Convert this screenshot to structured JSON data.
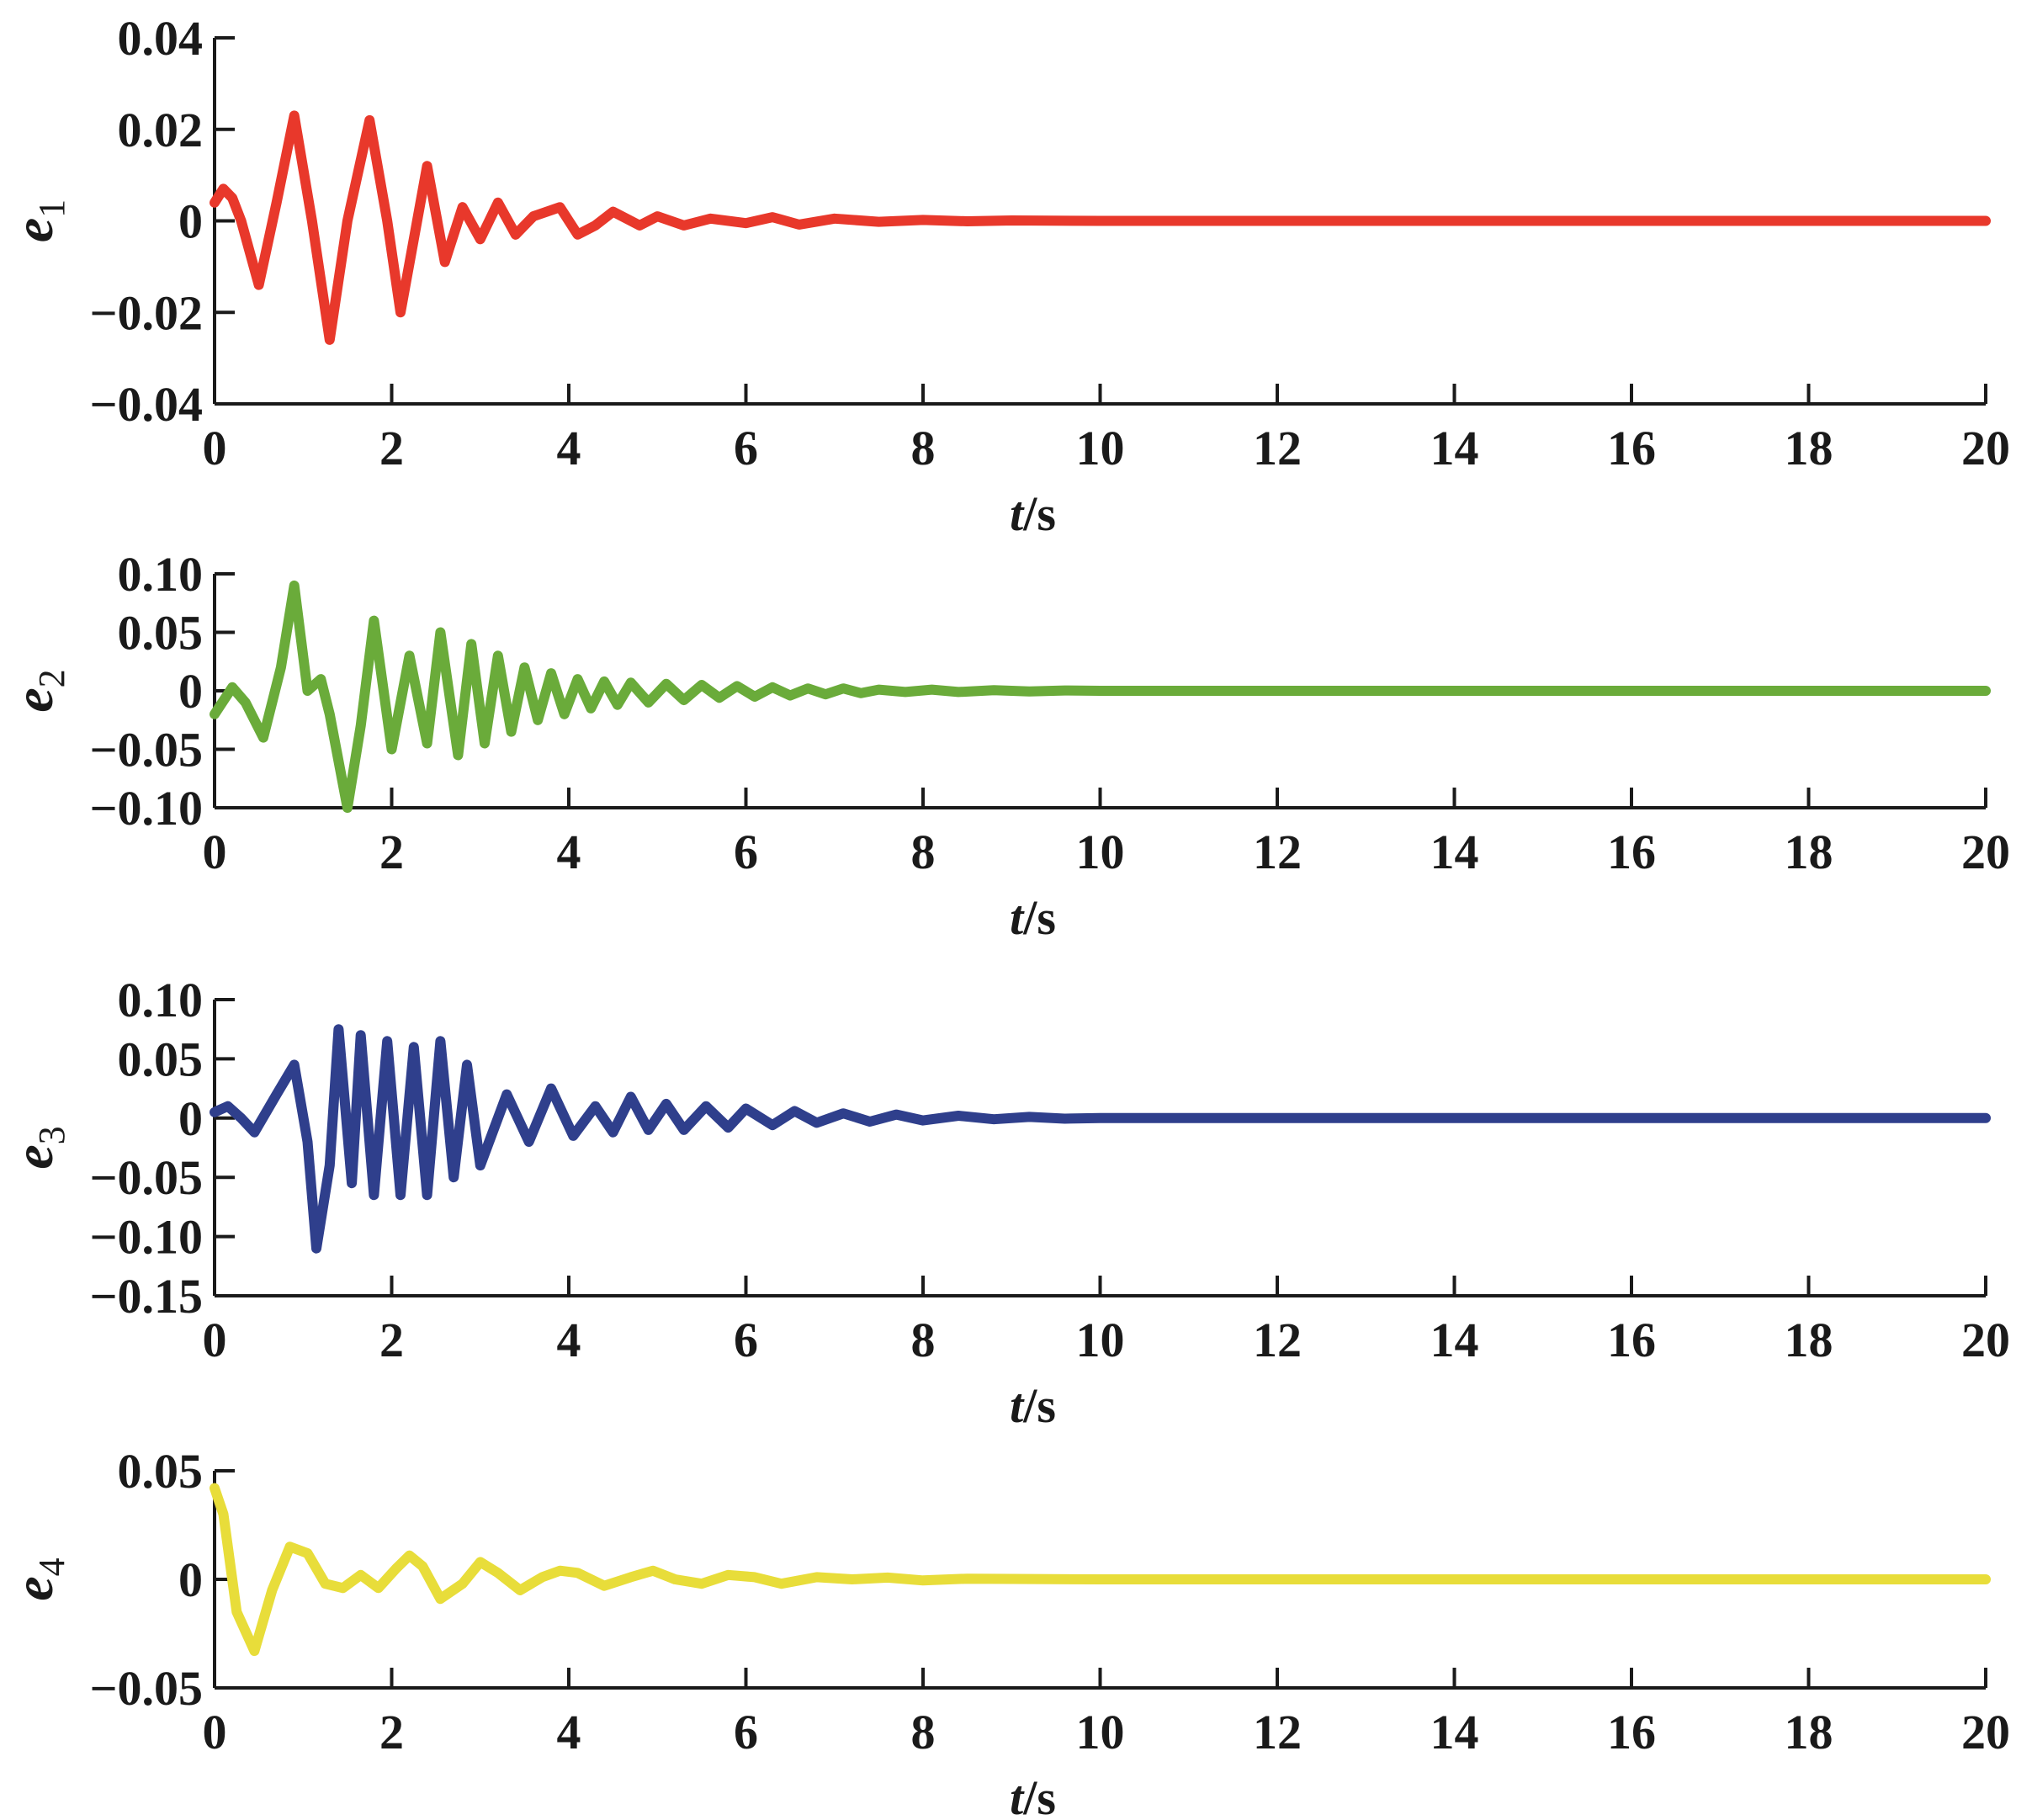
{
  "chart_data": [
    {
      "type": "line",
      "ylabel": "e",
      "ylabel_sub": "1",
      "xlabel": "t",
      "xlabel_unit": "/s",
      "xlim": [
        0,
        20
      ],
      "ylim": [
        -0.04,
        0.04
      ],
      "xticks": [
        0,
        2,
        4,
        6,
        8,
        10,
        12,
        14,
        16,
        18,
        20
      ],
      "xtick_labels": [
        "0",
        "2",
        "4",
        "6",
        "8",
        "10",
        "12",
        "14",
        "16",
        "18",
        "20"
      ],
      "yticks": [
        -0.04,
        -0.02,
        0,
        0.02,
        0.04
      ],
      "ytick_labels": [
        "−0.04",
        "−0.02",
        "0",
        "0.02",
        "0.04"
      ],
      "grid": false,
      "color": "#e8382b",
      "series": [
        {
          "x": [
            0,
            0.1,
            0.2,
            0.3,
            0.5,
            0.7,
            0.9,
            1.1,
            1.3,
            1.5,
            1.75,
            1.95,
            2.1,
            2.4,
            2.6,
            2.8,
            3.0,
            3.2,
            3.4,
            3.6,
            3.9,
            4.1,
            4.3,
            4.5,
            4.8,
            5.0,
            5.3,
            5.6,
            6.0,
            6.3,
            6.6,
            7.0,
            7.5,
            8.0,
            8.5,
            9.0,
            10,
            20
          ],
          "y": [
            0.004,
            0.007,
            0.005,
            0.0,
            -0.014,
            0.004,
            0.023,
            0.0,
            -0.026,
            0.0,
            0.022,
            0.0,
            -0.02,
            0.012,
            -0.009,
            0.003,
            -0.004,
            0.004,
            -0.003,
            0.001,
            0.003,
            -0.003,
            -0.001,
            0.002,
            -0.001,
            0.001,
            -0.001,
            0.0005,
            -0.0005,
            0.0008,
            -0.0008,
            0.0005,
            -0.0002,
            0.0002,
            -0.0001,
            0.0001,
            0,
            0
          ]
        }
      ]
    },
    {
      "type": "line",
      "ylabel": "e",
      "ylabel_sub": "2",
      "xlabel": "t",
      "xlabel_unit": "/s",
      "xlim": [
        0,
        20
      ],
      "ylim": [
        -0.1,
        0.1
      ],
      "xticks": [
        0,
        2,
        4,
        6,
        8,
        10,
        12,
        14,
        16,
        18,
        20
      ],
      "xtick_labels": [
        "0",
        "2",
        "4",
        "6",
        "8",
        "10",
        "12",
        "14",
        "16",
        "18",
        "20"
      ],
      "yticks": [
        -0.1,
        -0.05,
        0,
        0.05,
        0.1
      ],
      "ytick_labels": [
        "−0.10",
        "−0.05",
        "0",
        "0.05",
        "0.10"
      ],
      "grid": false,
      "color": "#6aab3a",
      "series": [
        {
          "x": [
            0,
            0.2,
            0.35,
            0.55,
            0.75,
            0.9,
            1.05,
            1.2,
            1.3,
            1.5,
            1.65,
            1.8,
            2.0,
            2.2,
            2.4,
            2.55,
            2.75,
            2.9,
            3.05,
            3.2,
            3.35,
            3.5,
            3.65,
            3.8,
            3.95,
            4.1,
            4.25,
            4.4,
            4.55,
            4.7,
            4.9,
            5.1,
            5.3,
            5.5,
            5.7,
            5.9,
            6.1,
            6.3,
            6.5,
            6.7,
            6.9,
            7.1,
            7.3,
            7.5,
            7.8,
            8.1,
            8.4,
            8.8,
            9.2,
            9.6,
            10,
            20
          ],
          "y": [
            -0.02,
            0.003,
            -0.01,
            -0.04,
            0.02,
            0.09,
            0.0,
            0.01,
            -0.02,
            -0.1,
            -0.03,
            0.06,
            -0.05,
            0.03,
            -0.045,
            0.05,
            -0.055,
            0.04,
            -0.045,
            0.03,
            -0.035,
            0.02,
            -0.025,
            0.015,
            -0.02,
            0.01,
            -0.015,
            0.008,
            -0.012,
            0.007,
            -0.01,
            0.006,
            -0.008,
            0.005,
            -0.006,
            0.004,
            -0.005,
            0.003,
            -0.004,
            0.002,
            -0.003,
            0.002,
            -0.002,
            0.001,
            -0.001,
            0.001,
            -0.001,
            0.0005,
            -0.0005,
            0.0003,
            0,
            0
          ]
        }
      ]
    },
    {
      "type": "line",
      "ylabel": "e",
      "ylabel_sub": "3",
      "xlabel": "t",
      "xlabel_unit": "/s",
      "xlim": [
        0,
        20
      ],
      "ylim": [
        -0.15,
        0.1
      ],
      "xticks": [
        0,
        2,
        4,
        6,
        8,
        10,
        12,
        14,
        16,
        18,
        20
      ],
      "xtick_labels": [
        "0",
        "2",
        "4",
        "6",
        "8",
        "10",
        "12",
        "14",
        "16",
        "18",
        "20"
      ],
      "yticks": [
        -0.15,
        -0.1,
        -0.05,
        0,
        0.05,
        0.1
      ],
      "ytick_labels": [
        "−0.15",
        "−0.10",
        "−0.05",
        "0",
        "0.05",
        "0.10"
      ],
      "grid": false,
      "color": "#2f3f8c",
      "series": [
        {
          "x": [
            0,
            0.15,
            0.3,
            0.45,
            0.7,
            0.9,
            1.05,
            1.15,
            1.3,
            1.4,
            1.55,
            1.65,
            1.8,
            1.95,
            2.1,
            2.25,
            2.4,
            2.55,
            2.7,
            2.85,
            3.0,
            3.3,
            3.55,
            3.8,
            4.05,
            4.3,
            4.5,
            4.7,
            4.9,
            5.1,
            5.3,
            5.55,
            5.8,
            6.0,
            6.3,
            6.55,
            6.8,
            7.1,
            7.4,
            7.7,
            8.0,
            8.4,
            8.8,
            9.2,
            9.6,
            10,
            20
          ],
          "y": [
            0.005,
            0.01,
            0.0,
            -0.012,
            0.02,
            0.045,
            -0.02,
            -0.11,
            -0.04,
            0.075,
            -0.055,
            0.07,
            -0.065,
            0.065,
            -0.065,
            0.06,
            -0.065,
            0.065,
            -0.05,
            0.045,
            -0.04,
            0.02,
            -0.02,
            0.025,
            -0.015,
            0.01,
            -0.012,
            0.018,
            -0.01,
            0.012,
            -0.01,
            0.01,
            -0.008,
            0.008,
            -0.006,
            0.006,
            -0.004,
            0.004,
            -0.003,
            0.003,
            -0.002,
            0.002,
            -0.001,
            0.001,
            -0.0005,
            0,
            0
          ]
        }
      ]
    },
    {
      "type": "line",
      "ylabel": "e",
      "ylabel_sub": "4",
      "xlabel": "t",
      "xlabel_unit": "/s",
      "xlim": [
        0,
        20
      ],
      "ylim": [
        -0.05,
        0.05
      ],
      "xticks": [
        0,
        2,
        4,
        6,
        8,
        10,
        12,
        14,
        16,
        18,
        20
      ],
      "xtick_labels": [
        "0",
        "2",
        "4",
        "6",
        "8",
        "10",
        "12",
        "14",
        "16",
        "18",
        "20"
      ],
      "yticks": [
        -0.05,
        0,
        0.05
      ],
      "ytick_labels": [
        "−0.05",
        "0",
        "0.05"
      ],
      "grid": false,
      "color": "#e8dd3a",
      "series": [
        {
          "x": [
            0,
            0.1,
            0.25,
            0.45,
            0.65,
            0.85,
            1.05,
            1.25,
            1.45,
            1.65,
            1.85,
            2.05,
            2.2,
            2.35,
            2.55,
            2.8,
            3.0,
            3.2,
            3.45,
            3.7,
            3.9,
            4.1,
            4.4,
            4.7,
            4.95,
            5.2,
            5.5,
            5.8,
            6.1,
            6.4,
            6.8,
            7.2,
            7.6,
            8.0,
            8.5,
            9.0,
            10,
            20
          ],
          "y": [
            0.042,
            0.03,
            -0.015,
            -0.033,
            -0.005,
            0.015,
            0.012,
            -0.002,
            -0.004,
            0.002,
            -0.004,
            0.005,
            0.011,
            0.006,
            -0.009,
            -0.002,
            0.008,
            0.003,
            -0.005,
            0.001,
            0.004,
            0.003,
            -0.003,
            0.001,
            0.004,
            0.0,
            -0.002,
            0.002,
            0.001,
            -0.002,
            0.001,
            0.0,
            0.0008,
            -0.0005,
            0.0003,
            0.0002,
            0,
            0
          ]
        }
      ]
    }
  ]
}
